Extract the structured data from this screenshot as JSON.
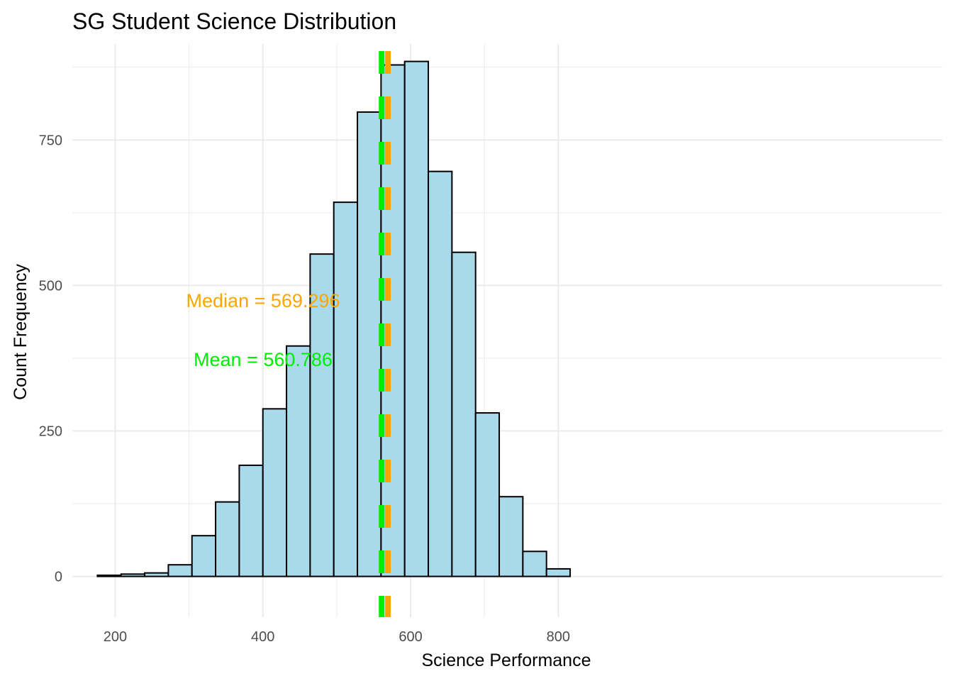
{
  "chart_data": {
    "type": "bar",
    "title": "SG Student Science Distribution",
    "xlabel": "Science Performance",
    "ylabel": "Count Frequency",
    "xlim": [
      142,
      1320
    ],
    "ylim": [
      -70,
      915
    ],
    "x_ticks": [
      200,
      400,
      600,
      800
    ],
    "y_ticks": [
      0,
      250,
      500,
      750
    ],
    "grid": true,
    "bin_width": 32,
    "bins": [
      {
        "x0": 176,
        "x1": 208,
        "count": 2
      },
      {
        "x0": 208,
        "x1": 240,
        "count": 4
      },
      {
        "x0": 240,
        "x1": 272,
        "count": 6
      },
      {
        "x0": 272,
        "x1": 304,
        "count": 20
      },
      {
        "x0": 304,
        "x1": 336,
        "count": 70
      },
      {
        "x0": 336,
        "x1": 368,
        "count": 128
      },
      {
        "x0": 368,
        "x1": 400,
        "count": 191
      },
      {
        "x0": 400,
        "x1": 432,
        "count": 288
      },
      {
        "x0": 432,
        "x1": 464,
        "count": 396
      },
      {
        "x0": 464,
        "x1": 496,
        "count": 554
      },
      {
        "x0": 496,
        "x1": 528,
        "count": 643
      },
      {
        "x0": 528,
        "x1": 560,
        "count": 798
      },
      {
        "x0": 560,
        "x1": 592,
        "count": 879
      },
      {
        "x0": 592,
        "x1": 624,
        "count": 885
      },
      {
        "x0": 624,
        "x1": 656,
        "count": 696
      },
      {
        "x0": 656,
        "x1": 688,
        "count": 557
      },
      {
        "x0": 688,
        "x1": 720,
        "count": 281
      },
      {
        "x0": 720,
        "x1": 752,
        "count": 137
      },
      {
        "x0": 752,
        "x1": 784,
        "count": 43
      },
      {
        "x0": 784,
        "x1": 816,
        "count": 13
      }
    ],
    "mean": 560.786,
    "median": 569.296,
    "annotations": {
      "median_label": "Median = 569.296",
      "mean_label": "Mean = 560.786"
    },
    "colors": {
      "bar_fill": "#a8daec",
      "bar_stroke": "#000000",
      "mean_line": "#00ee00",
      "median_line": "#ffa500",
      "grid": "#ebebeb"
    }
  }
}
